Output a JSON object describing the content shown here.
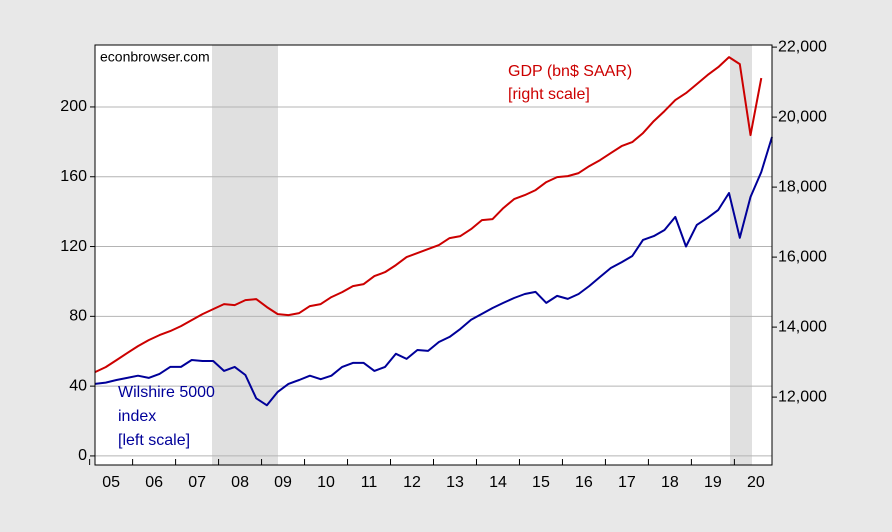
{
  "chart_data": {
    "type": "line",
    "annotations": [
      "econbrowser.com",
      "[right scale]",
      "[left scale]"
    ],
    "categories": [
      "05",
      null,
      null,
      null,
      "06",
      null,
      null,
      null,
      "07",
      null,
      null,
      null,
      "08",
      null,
      null,
      null,
      "09",
      null,
      null,
      null,
      "10",
      null,
      null,
      null,
      "11",
      null,
      null,
      null,
      "12",
      null,
      null,
      null,
      "13",
      null,
      null,
      null,
      "14",
      null,
      null,
      null,
      "15",
      null,
      null,
      null,
      "16",
      null,
      null,
      null,
      "17",
      null,
      null,
      null,
      "18",
      null,
      null,
      null,
      "19",
      null,
      null,
      null,
      "20",
      null,
      null,
      null
    ],
    "series": [
      {
        "name": "GDP (bn$ SAAR)",
        "color": "#cc0000",
        "axis": "y2",
        "values": [
          12714,
          12857,
          13057,
          13257,
          13457,
          13629,
          13771,
          13886,
          14029,
          14200,
          14371,
          14514,
          14657,
          14629,
          14771,
          14800,
          14571,
          14371,
          14343,
          14400,
          14600,
          14657,
          14857,
          15000,
          15171,
          15229,
          15457,
          15571,
          15771,
          16000,
          16114,
          16229,
          16343,
          16543,
          16600,
          16800,
          17057,
          17086,
          17400,
          17657,
          17771,
          17914,
          18143,
          18286,
          18314,
          18400,
          18600,
          18771,
          18971,
          19171,
          19286,
          19543,
          19886,
          20171,
          20486,
          20686,
          20943,
          21200,
          21429,
          21714,
          21514,
          19486,
          21114,
          null
        ]
      },
      {
        "name": "Wilshire 5000 index",
        "color": "#000099",
        "values": [
          41.3,
          42,
          43.5,
          44.7,
          46,
          44.7,
          47,
          51,
          51,
          55,
          54.4,
          54.4,
          48.7,
          51,
          46.4,
          33,
          29,
          36.7,
          41.3,
          43.5,
          46,
          44,
          46,
          51,
          53.3,
          53.3,
          48.7,
          51,
          58.5,
          55.6,
          60.7,
          60.2,
          65.3,
          68.2,
          72.8,
          78,
          81.4,
          84.8,
          87.7,
          90.5,
          92.8,
          94,
          87.7,
          91.7,
          90,
          92.8,
          97.4,
          102.6,
          107.7,
          111,
          114.6,
          123.8,
          126,
          129.5,
          137,
          120,
          132.4,
          136.4,
          141,
          150.7,
          125,
          148.4,
          162.7,
          182.8
        ]
      }
    ],
    "ylim": [
      -5.2,
      235.5
    ],
    "yticks": [
      0,
      40,
      80,
      120,
      160,
      200
    ],
    "y2lim": [
      10060,
      22060
    ],
    "y2ticks": [
      {
        "value": 12000,
        "label": "12,000"
      },
      {
        "value": 14000,
        "label": "14,000"
      },
      {
        "value": 16000,
        "label": "16,000"
      },
      {
        "value": 18000,
        "label": "18,000"
      },
      {
        "value": 20000,
        "label": "20,000"
      },
      {
        "value": 22000,
        "label": "22,000"
      }
    ],
    "grid": true
  }
}
